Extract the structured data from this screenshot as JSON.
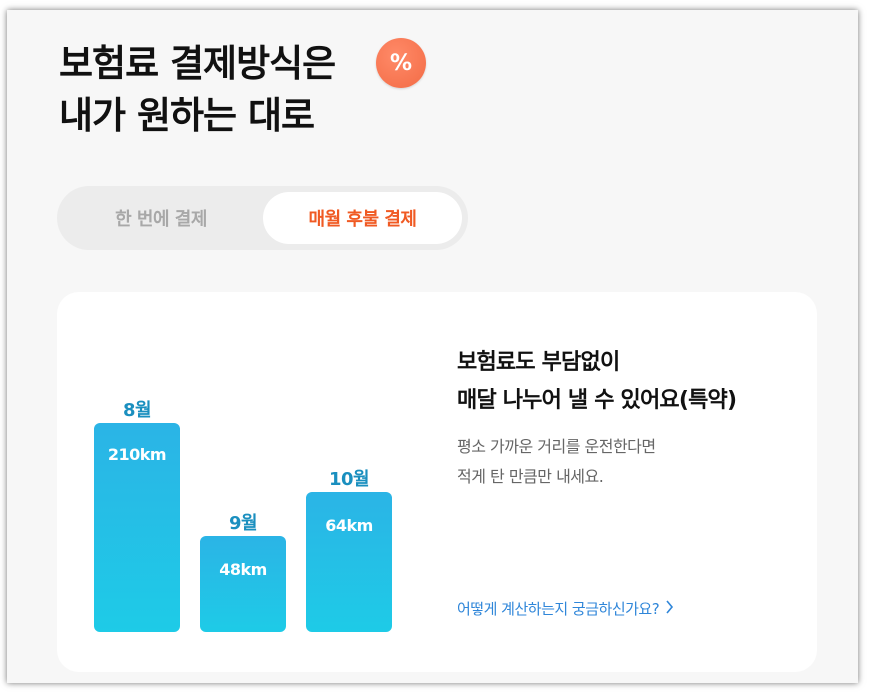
{
  "headline": {
    "line1": "보험료 결제방식은",
    "line2": "내가 원하는 대로"
  },
  "badge": {
    "symbol": "%"
  },
  "toggle": {
    "tabs": [
      {
        "label": "한 번에 결제",
        "selected": false
      },
      {
        "label": "매월 후불 결제",
        "selected": true
      }
    ]
  },
  "card": {
    "title_line1": "보험료도 부담없이",
    "title_line2": "매달 나누어 낼 수 있어요(특약)",
    "desc_line1": "평소 가까운 거리를 운전한다면",
    "desc_line2": "적게 탄 만큼만 내세요.",
    "link": "어떻게 계산하는지 궁금하신가요?",
    "bars": [
      {
        "month": "8월",
        "value": "210km"
      },
      {
        "month": "9월",
        "value": "48km"
      },
      {
        "month": "10월",
        "value": "64km"
      }
    ]
  },
  "colors": {
    "accent": "#f05a23",
    "bar": "#1ecbe7",
    "link": "#2f86d9"
  }
}
